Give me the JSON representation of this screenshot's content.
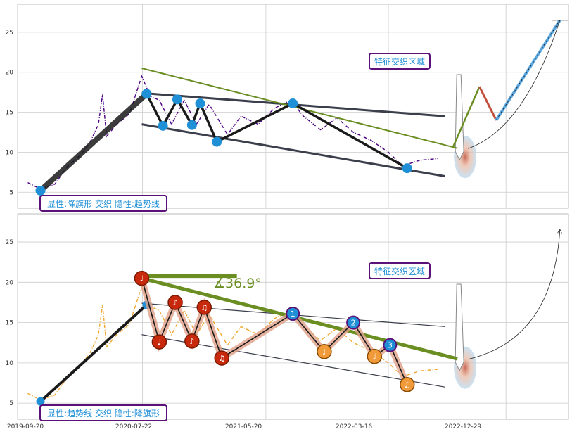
{
  "colors": {
    "plot_bg": "#ffffff",
    "grid": "#cccccc",
    "frame": "#bbbbbb",
    "price_top": "#4b0082",
    "price_bottom": "#f0a830",
    "trend_black": "#1a1a1a",
    "channel": "#3b3f4c",
    "olive": "#6b8e23",
    "node_blue": "#1f8fd6",
    "node_red": "#c8290c",
    "node_orange": "#f09a3a",
    "box_border": "#5a1278",
    "box_text": "#1f8fd6",
    "zone_fill": "#b8d8ef",
    "projection_red": "#c0503a",
    "projection_blue": "#5aa7e0"
  },
  "x_tick_labels": [
    "2019-09-20",
    "2020-07-22",
    "2021-05-20",
    "2022-03-16",
    "2022-12-29"
  ],
  "chart_data": [
    {
      "type": "line",
      "panel": "top",
      "x_ticks": [
        "2019-09-20",
        "2020-07-22",
        "2021-05-20",
        "2022-03-16",
        "2022-12-29"
      ],
      "yticks": [
        5,
        10,
        15,
        20,
        25
      ],
      "ylim": [
        3,
        28.5
      ],
      "xlim": [
        "2019-09-20",
        "2023-05-31"
      ],
      "grid": true,
      "zone_label": "特征交织区域",
      "pattern_label": "显性:降旗形 交织 隐性:趋势线",
      "series": [
        {
          "role": "price",
          "points": [
            [
              "2019-10-15",
              6.2
            ],
            [
              "2019-11-15",
              5.4
            ],
            [
              "2019-12-20",
              6.0
            ],
            [
              "2020-01-20",
              8.2
            ],
            [
              "2020-02-20",
              9.6
            ],
            [
              "2020-03-15",
              11.2
            ],
            [
              "2020-04-05",
              13.5
            ],
            [
              "2020-04-15",
              17.2
            ],
            [
              "2020-04-25",
              12.0
            ],
            [
              "2020-05-20",
              13.5
            ],
            [
              "2020-06-20",
              14.8
            ],
            [
              "2020-07-20",
              19.5
            ],
            [
              "2020-08-10",
              17.0
            ],
            [
              "2020-09-01",
              16.5
            ],
            [
              "2020-10-01",
              13.5
            ],
            [
              "2020-11-01",
              16.5
            ],
            [
              "2020-12-01",
              13.5
            ],
            [
              "2021-01-01",
              16.0
            ],
            [
              "2021-02-15",
              12.2
            ],
            [
              "2021-03-20",
              14.5
            ],
            [
              "2021-05-01",
              13.5
            ],
            [
              "2021-06-10",
              15.5
            ],
            [
              "2021-07-20",
              16.5
            ],
            [
              "2021-08-20",
              14.5
            ],
            [
              "2021-10-01",
              12.8
            ],
            [
              "2021-11-10",
              14.3
            ],
            [
              "2021-12-20",
              12.5
            ],
            [
              "2022-02-01",
              11.5
            ],
            [
              "2022-03-16",
              10.0
            ],
            [
              "2022-04-20",
              8.3
            ],
            [
              "2022-06-01",
              9.0
            ],
            [
              "2022-07-15",
              9.2
            ]
          ]
        },
        {
          "role": "pattern-path",
          "points": [
            [
              "2019-11-15",
              5.2
            ],
            [
              "2020-08-01",
              17.3
            ],
            [
              "2020-09-10",
              13.3
            ],
            [
              "2020-10-15",
              16.6
            ],
            [
              "2020-11-20",
              13.4
            ],
            [
              "2020-12-10",
              16.1
            ],
            [
              "2021-01-20",
              11.3
            ],
            [
              "2021-07-25",
              16.1
            ],
            [
              "2022-05-01",
              8.0
            ]
          ]
        },
        {
          "role": "channel-upper",
          "points": [
            [
              "2020-07-20",
              17.4
            ],
            [
              "2022-08-01",
              14.5
            ]
          ]
        },
        {
          "role": "channel-lower",
          "points": [
            [
              "2020-07-20",
              13.5
            ],
            [
              "2022-08-01",
              7.0
            ]
          ]
        },
        {
          "role": "trend-olive",
          "points": [
            [
              "2020-07-20",
              20.5
            ],
            [
              "2022-09-01",
              10.5
            ]
          ]
        },
        {
          "role": "projection",
          "points": [
            [
              "2022-08-20",
              10.5
            ],
            [
              "2022-10-25",
              18.2
            ],
            [
              "2022-12-05",
              14.0
            ],
            [
              "2023-05-10",
              26.5
            ]
          ]
        }
      ]
    },
    {
      "type": "line",
      "panel": "bottom",
      "x_ticks": [
        "2019-09-20",
        "2020-07-22",
        "2021-05-20",
        "2022-03-16",
        "2022-12-29"
      ],
      "yticks": [
        5,
        10,
        15,
        20,
        25
      ],
      "ylim": [
        3,
        28.5
      ],
      "xlim": [
        "2019-09-20",
        "2023-05-31"
      ],
      "grid": true,
      "angle_label": "∡36.9°",
      "zone_label": "特征交织区域",
      "pattern_label": "显性:趋势线 交织 隐性:降旗形",
      "series": [
        {
          "role": "price",
          "points": [
            [
              "2019-10-15",
              6.2
            ],
            [
              "2019-11-15",
              5.4
            ],
            [
              "2019-12-20",
              6.0
            ],
            [
              "2020-01-20",
              8.2
            ],
            [
              "2020-02-20",
              9.6
            ],
            [
              "2020-03-15",
              11.2
            ],
            [
              "2020-04-05",
              13.5
            ],
            [
              "2020-04-15",
              17.2
            ],
            [
              "2020-04-25",
              12.0
            ],
            [
              "2020-05-20",
              13.5
            ],
            [
              "2020-06-20",
              14.8
            ],
            [
              "2020-07-20",
              19.5
            ],
            [
              "2020-08-10",
              17.0
            ],
            [
              "2020-09-01",
              16.5
            ],
            [
              "2020-10-01",
              13.5
            ],
            [
              "2020-11-01",
              16.5
            ],
            [
              "2020-12-01",
              13.5
            ],
            [
              "2021-01-01",
              16.0
            ],
            [
              "2021-02-15",
              12.2
            ],
            [
              "2021-03-20",
              14.5
            ],
            [
              "2021-05-01",
              13.5
            ],
            [
              "2021-06-10",
              15.5
            ],
            [
              "2021-07-20",
              16.5
            ],
            [
              "2021-08-20",
              14.5
            ],
            [
              "2021-10-01",
              12.8
            ],
            [
              "2021-11-10",
              14.3
            ],
            [
              "2021-12-20",
              12.5
            ],
            [
              "2022-02-01",
              11.5
            ],
            [
              "2022-03-16",
              10.0
            ],
            [
              "2022-04-20",
              8.3
            ],
            [
              "2022-06-01",
              9.0
            ],
            [
              "2022-07-15",
              9.2
            ]
          ]
        },
        {
          "role": "trend-path",
          "points": [
            [
              "2019-11-15",
              5.2
            ],
            [
              "2020-08-01",
              17.2
            ]
          ]
        },
        {
          "role": "pattern-path",
          "points": [
            [
              "2020-07-20",
              20.5
            ],
            [
              "2020-09-01",
              12.6
            ],
            [
              "2020-10-10",
              17.5
            ],
            [
              "2020-11-20",
              12.7
            ],
            [
              "2020-12-20",
              16.9
            ],
            [
              "2021-02-01",
              10.6
            ],
            [
              "2021-07-25",
              16.1
            ],
            [
              "2021-10-10",
              11.4
            ],
            [
              "2021-12-20",
              15.0
            ],
            [
              "2022-02-10",
              10.8
            ],
            [
              "2022-03-20",
              12.2
            ],
            [
              "2022-05-01",
              7.3
            ]
          ]
        },
        {
          "role": "channel-upper",
          "points": [
            [
              "2020-07-20",
              17.4
            ],
            [
              "2022-08-01",
              14.5
            ]
          ]
        },
        {
          "role": "channel-lower",
          "points": [
            [
              "2020-07-20",
              13.5
            ],
            [
              "2022-08-01",
              7.0
            ]
          ]
        },
        {
          "role": "trend-olive",
          "points": [
            [
              "2020-07-20",
              20.5
            ],
            [
              "2022-09-01",
              10.5
            ]
          ]
        },
        {
          "role": "horizontal-olive",
          "points": [
            [
              "2020-07-20",
              20.8
            ],
            [
              "2021-03-10",
              20.8
            ]
          ]
        }
      ],
      "markers_red": [
        "♩",
        "♩",
        "♪",
        "♪",
        "♫",
        "♫"
      ],
      "markers_orange": [
        "♩",
        "♩",
        "♫"
      ],
      "markers_blue": [
        "1",
        "2",
        "3"
      ]
    }
  ]
}
